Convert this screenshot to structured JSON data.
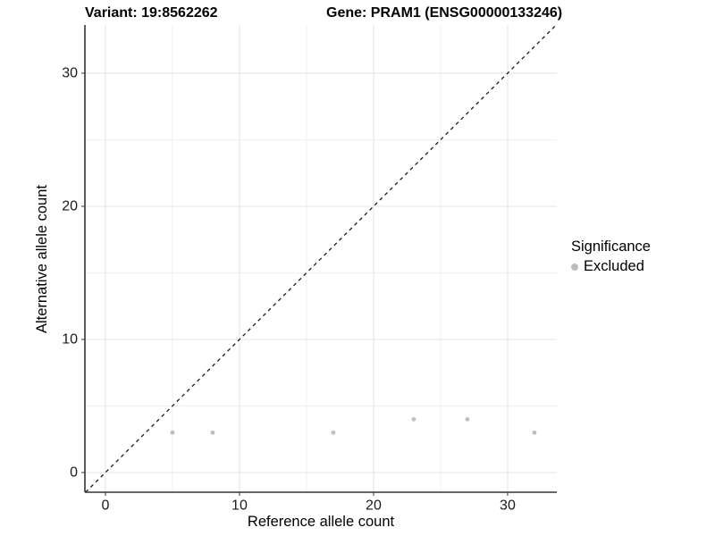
{
  "chart_data": {
    "type": "scatter",
    "titles": {
      "left": "Variant: 19:8562262",
      "right": "Gene: PRAM1 (ENSG00000133246)"
    },
    "xlabel": "Reference allele count",
    "ylabel": "Alternative allele count",
    "xlim": [
      -1.53,
      33.67
    ],
    "ylim": [
      -1.48,
      33.62
    ],
    "x_major_ticks": [
      0,
      10,
      20,
      30
    ],
    "y_major_ticks": [
      0,
      10,
      20,
      30
    ],
    "x_minor_gridlines": [
      5,
      15,
      25
    ],
    "y_minor_gridlines": [
      5,
      15,
      25
    ],
    "grid": "major+minor",
    "identity_line": {
      "style": "dashed",
      "equation": "y = x",
      "color": "#1a1a1a"
    },
    "series": [
      {
        "name": "Excluded",
        "color": "#bebebe",
        "points": [
          {
            "x": 5,
            "y": 3
          },
          {
            "x": 8,
            "y": 3
          },
          {
            "x": 17,
            "y": 3
          },
          {
            "x": 23,
            "y": 4
          },
          {
            "x": 27,
            "y": 4
          },
          {
            "x": 32,
            "y": 3
          }
        ]
      }
    ],
    "legend": {
      "title": "Significance",
      "position": "right",
      "entries": [
        {
          "label": "Excluded",
          "color": "#bebebe"
        }
      ]
    }
  }
}
